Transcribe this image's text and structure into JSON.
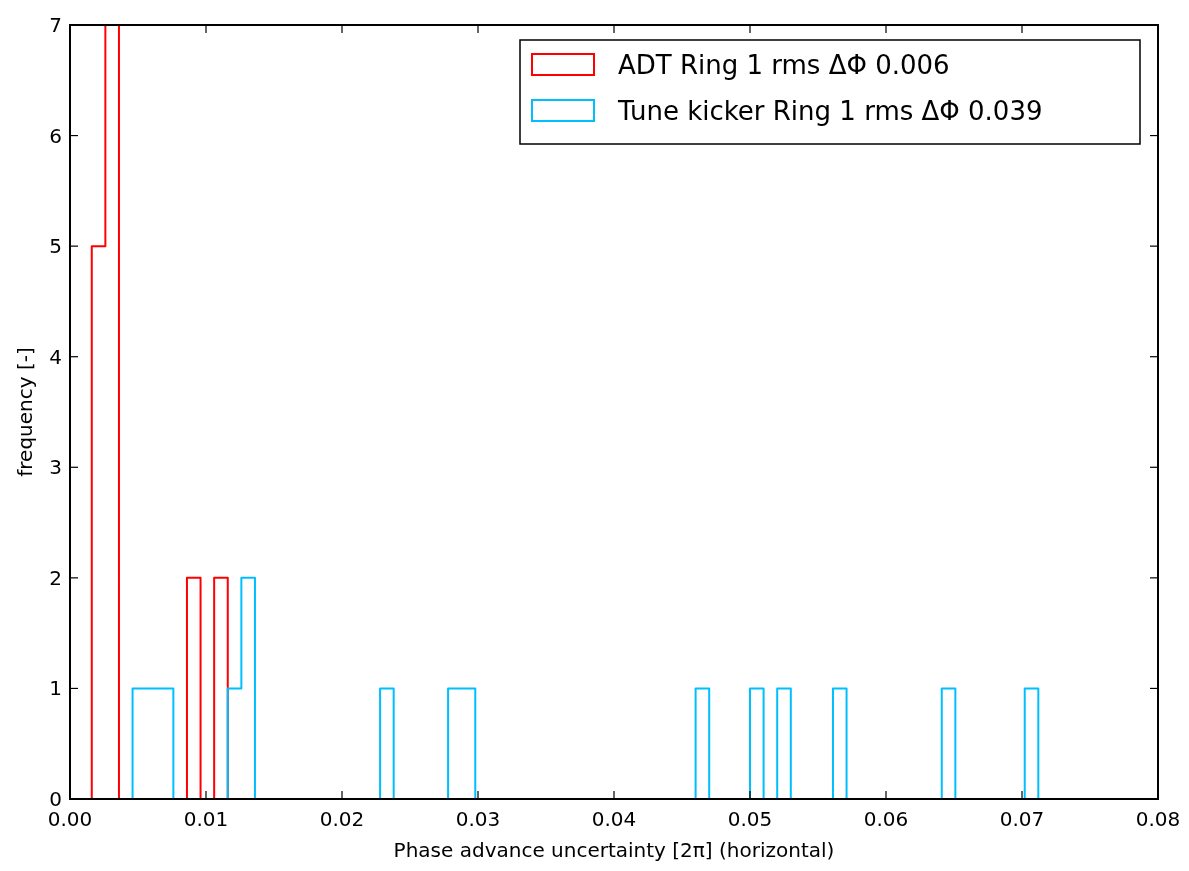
{
  "chart_data": {
    "type": "histogram",
    "xlabel": "Phase advance uncertainty [2π] (horizontal)",
    "ylabel": "frequency [-]",
    "bins": [
      0.0016,
      0.0026,
      0.0036,
      0.0046,
      0.0056,
      0.0066,
      0.0076,
      0.0086,
      0.0096,
      0.0106,
      0.0116,
      0.0126,
      0.0136,
      0.0228,
      0.0238,
      0.0278,
      0.0288,
      0.0298,
      0.046,
      0.047,
      0.05,
      0.051,
      0.052,
      0.053,
      0.0561,
      0.0571,
      0.0641,
      0.0651,
      0.0702,
      0.0712
    ],
    "series": [
      {
        "name": "ADT Ring 1 rms ΔΦ 0.006",
        "color": "#ff0000",
        "values": [
          5,
          7,
          0,
          0,
          0,
          0,
          0,
          2,
          0,
          2,
          0,
          0,
          0,
          0,
          0,
          0,
          0,
          0,
          0,
          0,
          0,
          0,
          0,
          0,
          0,
          0,
          0,
          0,
          0
        ]
      },
      {
        "name": "Tune kicker Ring 1 rms ΔΦ 0.039",
        "color": "#00bfff",
        "values": [
          0,
          0,
          0,
          1,
          1,
          1,
          0,
          0,
          0,
          0,
          1,
          2,
          0,
          1,
          0,
          1,
          1,
          0,
          1,
          0,
          1,
          0,
          1,
          0,
          1,
          0,
          1,
          0,
          1
        ]
      }
    ],
    "xlim": [
      0,
      0.08
    ],
    "xticks": [
      {
        "value": 0,
        "label": "0.00"
      },
      {
        "value": 0.01,
        "label": "0.01"
      },
      {
        "value": 0.02,
        "label": "0.02"
      },
      {
        "value": 0.03,
        "label": "0.03"
      },
      {
        "value": 0.04,
        "label": "0.04"
      },
      {
        "value": 0.05,
        "label": "0.05"
      },
      {
        "value": 0.06,
        "label": "0.06"
      },
      {
        "value": 0.07,
        "label": "0.07"
      },
      {
        "value": 0.08,
        "label": "0.08"
      }
    ],
    "ylim": [
      0,
      7
    ],
    "yticks": [
      0,
      1,
      2,
      3,
      4,
      5,
      6,
      7
    ],
    "grid": false,
    "legend": "top right"
  }
}
